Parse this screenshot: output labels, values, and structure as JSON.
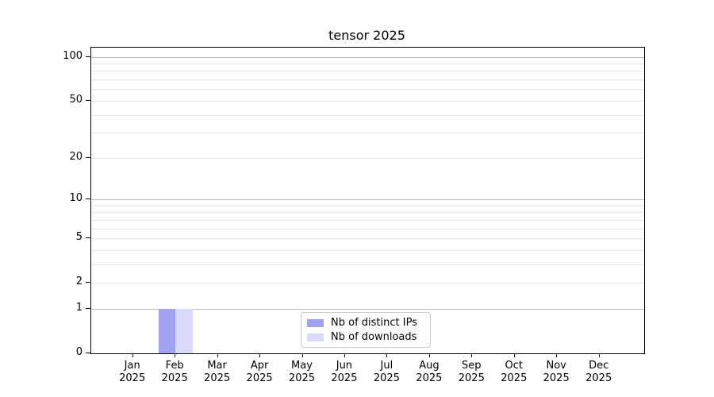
{
  "chart_data": {
    "type": "bar",
    "title": "tensor 2025",
    "categories": [
      "Jan",
      "Feb",
      "Mar",
      "Apr",
      "May",
      "Jun",
      "Jul",
      "Aug",
      "Sep",
      "Oct",
      "Nov",
      "Dec"
    ],
    "x_tick_year": "2025",
    "series": [
      {
        "name": "Nb of distinct IPs",
        "color": "#a2a2f0",
        "values": [
          0,
          1,
          0,
          0,
          0,
          0,
          0,
          0,
          0,
          0,
          0,
          0
        ]
      },
      {
        "name": "Nb of downloads",
        "color": "#d9d9f8",
        "values": [
          0,
          1,
          0,
          0,
          0,
          0,
          0,
          0,
          0,
          0,
          0,
          0
        ]
      }
    ],
    "y_axis": {
      "scale": "log1p",
      "tick_values": [
        0,
        1,
        2,
        5,
        10,
        20,
        50,
        100
      ],
      "tick_labels": [
        "0",
        "1",
        "2",
        "5",
        "10",
        "20",
        "50",
        "100"
      ],
      "major_grid_values": [
        1,
        10,
        100
      ],
      "minor_grid_values": [
        2,
        3,
        4,
        5,
        6,
        7,
        8,
        9,
        20,
        30,
        40,
        50,
        60,
        70,
        80,
        90
      ],
      "range": [
        0,
        114
      ]
    },
    "legend": {
      "position": "lower center",
      "entries": [
        "Nb of distinct IPs",
        "Nb of downloads"
      ]
    },
    "grid": "horizontal"
  },
  "colors": {
    "major_grid": "#bbbbbb",
    "minor_grid": "#e8e8e8",
    "axis": "#000000",
    "text": "#000000",
    "legend_border": "#cccccc",
    "background": "#ffffff"
  }
}
